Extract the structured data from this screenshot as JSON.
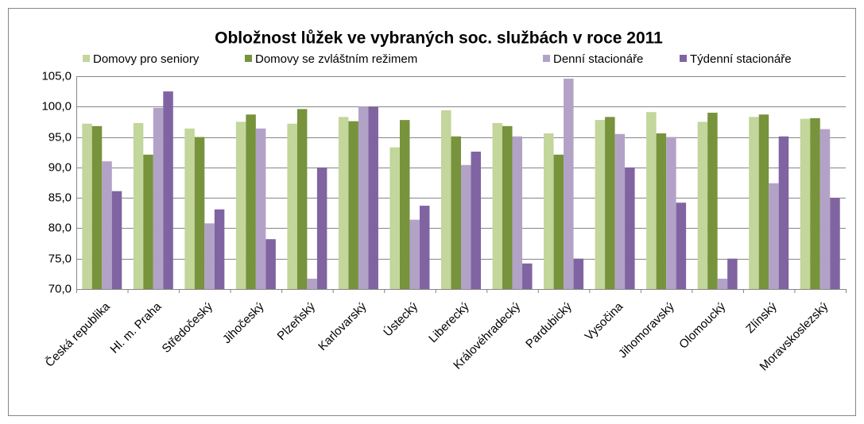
{
  "chart_data": {
    "type": "bar",
    "title": "Obložnost lůžek ve vybraných soc. službách v roce 2011",
    "categories": [
      "Česká republika",
      "Hl. m. Praha",
      "Středočeský",
      "Jihočeský",
      "Plzeňský",
      "Karlovarský",
      "Ústecký",
      "Liberecký",
      "Královéhradecký",
      "Pardubický",
      "Vysočina",
      "Jihomoravský",
      "Olomoucký",
      "Zlínský",
      "Moravskoslezský"
    ],
    "series": [
      {
        "name": "Domovy pro seniory",
        "color": "#c3d69b",
        "values": [
          97.2,
          97.3,
          96.4,
          97.5,
          97.2,
          98.3,
          93.3,
          99.4,
          97.3,
          95.6,
          97.8,
          99.1,
          97.5,
          98.3,
          98.0
        ]
      },
      {
        "name": "Domovy se zvláštním režimem",
        "color": "#77933c",
        "values": [
          96.8,
          92.1,
          95.0,
          98.7,
          99.6,
          97.6,
          97.8,
          95.1,
          96.8,
          92.1,
          98.3,
          95.6,
          99.0,
          98.7,
          98.1
        ]
      },
      {
        "name": "Denní stacionáře",
        "color": "#b3a2c7",
        "values": [
          91.0,
          99.8,
          80.8,
          96.4,
          71.7,
          100.0,
          81.4,
          90.4,
          95.1,
          104.6,
          95.5,
          95.0,
          71.7,
          87.4,
          96.3
        ]
      },
      {
        "name": "Týdenní stacionáře",
        "color": "#8064a2",
        "values": [
          86.1,
          102.5,
          83.1,
          78.2,
          90.0,
          100.0,
          83.7,
          92.6,
          74.2,
          75.0,
          90.0,
          84.2,
          75.0,
          95.1,
          85.0
        ]
      }
    ],
    "ylim": [
      70,
      105
    ],
    "yticks": [
      {
        "value": 70,
        "label": "70,0"
      },
      {
        "value": 75,
        "label": "75,0"
      },
      {
        "value": 80,
        "label": "80,0"
      },
      {
        "value": 85,
        "label": "85,0"
      },
      {
        "value": 90,
        "label": "90,0"
      },
      {
        "value": 95,
        "label": "95,0"
      },
      {
        "value": 100,
        "label": "100,0"
      },
      {
        "value": 105,
        "label": "105,0"
      }
    ],
    "grid": true,
    "legend": "top"
  }
}
